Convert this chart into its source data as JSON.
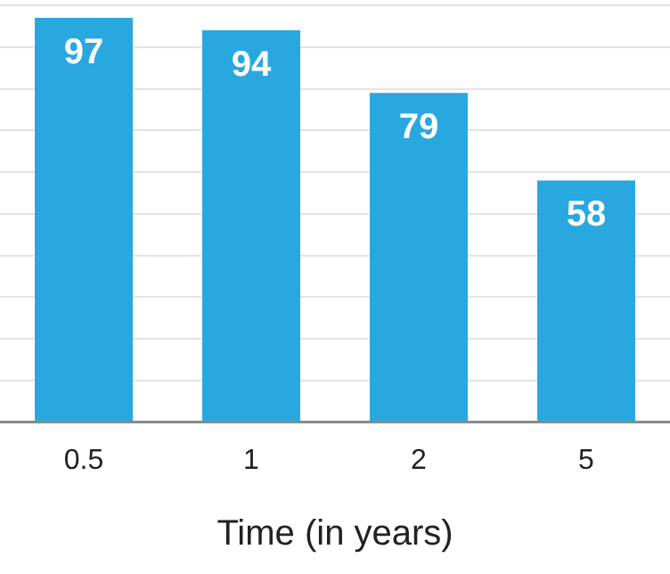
{
  "chart_data": {
    "type": "bar",
    "xlabel": "Time (in years)",
    "categories": [
      "0.5",
      "1",
      "2",
      "5"
    ],
    "values": [
      97,
      94,
      79,
      58
    ],
    "color": "#29a8e0",
    "ylim": [
      0,
      100
    ],
    "yticks": [
      {
        "value": 0,
        "label": null
      },
      {
        "value": 10,
        "label": null
      },
      {
        "value": 20,
        "label": null
      },
      {
        "value": 30,
        "label": null
      },
      {
        "value": 40,
        "label": null
      },
      {
        "value": 50,
        "label": null
      },
      {
        "value": 60,
        "label": null
      },
      {
        "value": 70,
        "label": null
      },
      {
        "value": 80,
        "label": null
      },
      {
        "value": 90,
        "label": null
      },
      {
        "value": 100,
        "label": null
      }
    ],
    "grid": "y",
    "tick_labels": "x",
    "data_labels": true
  }
}
